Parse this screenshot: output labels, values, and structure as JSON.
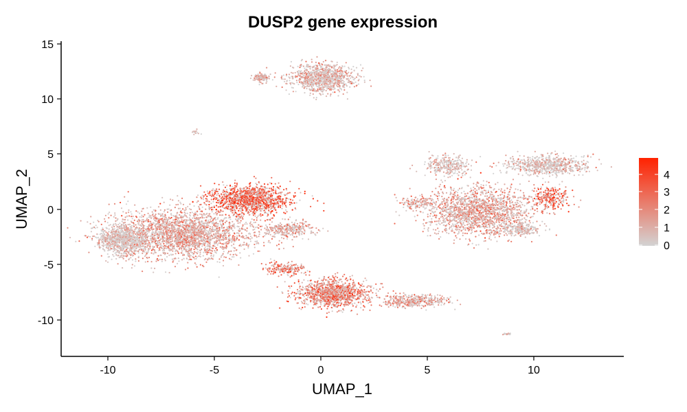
{
  "chart_data": {
    "type": "scatter",
    "title": "DUSP2 gene expression",
    "xlabel": "UMAP_1",
    "ylabel": "UMAP_2",
    "xlim": [
      -12.3,
      14.0
    ],
    "ylim": [
      -13.3,
      15.3
    ],
    "xticks": [
      -10,
      -5,
      0,
      5,
      10
    ],
    "yticks": [
      -10,
      -5,
      0,
      5,
      10,
      15
    ],
    "xtick_labels": [
      "-10",
      "-5",
      "0",
      "5",
      "10"
    ],
    "ytick_labels": [
      "-10",
      "-5",
      "0",
      "5",
      "10",
      "15"
    ],
    "grid": false,
    "legend_position": "right",
    "color_scale": {
      "low_color": "#d3d3d3",
      "high_color": "#ff2200",
      "min": 0,
      "max": 4.7,
      "ticks": [
        0,
        1,
        2,
        3,
        4
      ],
      "tick_labels": [
        "0",
        "1",
        "2",
        "3",
        "4"
      ]
    },
    "clusters": [
      {
        "id": "left-large-mass",
        "center": [
          -6.5,
          -2.2
        ],
        "spread": [
          2.4,
          1.6
        ],
        "n": 2600,
        "mean_expression": 1.5
      },
      {
        "id": "left-upper-red",
        "center": [
          -3.3,
          0.9
        ],
        "spread": [
          1.3,
          0.9
        ],
        "n": 1300,
        "mean_expression": 3.2
      },
      {
        "id": "left-far-grey",
        "center": [
          -9.3,
          -2.8
        ],
        "spread": [
          0.8,
          1.0
        ],
        "n": 800,
        "mean_expression": 0.4
      },
      {
        "id": "left-tail",
        "center": [
          -1.5,
          -1.8
        ],
        "spread": [
          0.8,
          0.5
        ],
        "n": 300,
        "mean_expression": 1.2
      },
      {
        "id": "top-cluster",
        "center": [
          0.1,
          11.9
        ],
        "spread": [
          1.1,
          0.9
        ],
        "n": 1000,
        "mean_expression": 1.0
      },
      {
        "id": "top-small",
        "center": [
          -2.8,
          11.9
        ],
        "spread": [
          0.3,
          0.3
        ],
        "n": 120,
        "mean_expression": 0.9
      },
      {
        "id": "bottom-cluster",
        "center": [
          0.6,
          -7.6
        ],
        "spread": [
          1.2,
          0.9
        ],
        "n": 1200,
        "mean_expression": 2.4
      },
      {
        "id": "bottom-arm",
        "center": [
          -1.6,
          -5.4
        ],
        "spread": [
          0.7,
          0.4
        ],
        "n": 200,
        "mean_expression": 2.6
      },
      {
        "id": "bottom-tail",
        "center": [
          4.4,
          -8.3
        ],
        "spread": [
          1.1,
          0.4
        ],
        "n": 400,
        "mean_expression": 1.4
      },
      {
        "id": "right-main",
        "center": [
          7.4,
          -0.2
        ],
        "spread": [
          1.8,
          1.6
        ],
        "n": 1800,
        "mean_expression": 1.4
      },
      {
        "id": "right-upper",
        "center": [
          10.6,
          4.0
        ],
        "spread": [
          1.4,
          0.6
        ],
        "n": 700,
        "mean_expression": 0.6
      },
      {
        "id": "right-upper-left",
        "center": [
          6.0,
          4.0
        ],
        "spread": [
          0.8,
          0.6
        ],
        "n": 300,
        "mean_expression": 0.6
      },
      {
        "id": "right-red-patch",
        "center": [
          10.8,
          1.0
        ],
        "spread": [
          0.6,
          0.7
        ],
        "n": 250,
        "mean_expression": 3.0
      },
      {
        "id": "right-lower",
        "center": [
          9.5,
          -1.8
        ],
        "spread": [
          0.6,
          0.4
        ],
        "n": 200,
        "mean_expression": 0.4
      },
      {
        "id": "right-left-arm",
        "center": [
          4.6,
          0.6
        ],
        "spread": [
          0.6,
          0.3
        ],
        "n": 120,
        "mean_expression": 1.5
      },
      {
        "id": "tiny-top-left",
        "center": [
          -5.9,
          7.0
        ],
        "spread": [
          0.12,
          0.15
        ],
        "n": 15,
        "mean_expression": 0.5
      },
      {
        "id": "tiny-bottom-right",
        "center": [
          8.8,
          -11.3
        ],
        "spread": [
          0.2,
          0.08
        ],
        "n": 20,
        "mean_expression": 0.3
      }
    ]
  }
}
